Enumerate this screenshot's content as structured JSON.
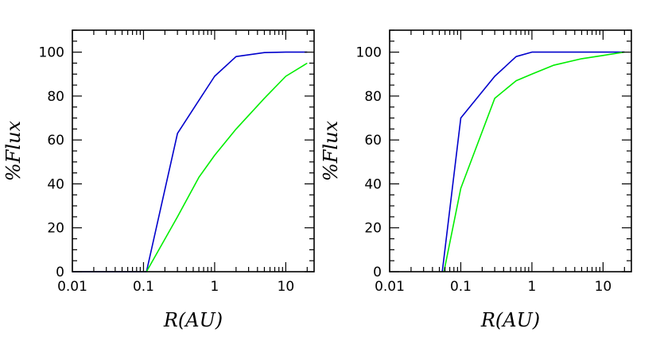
{
  "chart_data": [
    {
      "type": "line",
      "xlabel": "R(AU)",
      "ylabel": "%Flux",
      "xscale": "log",
      "xlim": [
        0.01,
        25
      ],
      "ylim": [
        0,
        110
      ],
      "xticks": [
        0.01,
        0.1,
        1,
        10
      ],
      "xtick_labels": [
        "0.01",
        "0.1",
        "1",
        "10"
      ],
      "yticks": [
        0,
        20,
        40,
        60,
        80,
        100
      ],
      "ytick_labels": [
        "0",
        "20",
        "40",
        "60",
        "80",
        "100"
      ],
      "series": [
        {
          "name": "blue",
          "color": "#0000cc",
          "x": [
            0.01,
            0.11,
            0.3,
            0.6,
            1,
            2,
            5,
            10,
            20
          ],
          "y": [
            0,
            0,
            63,
            78,
            89,
            98,
            99.8,
            100,
            100
          ]
        },
        {
          "name": "green",
          "color": "#00ee00",
          "x": [
            0.11,
            0.3,
            0.6,
            1,
            2,
            5,
            10,
            20
          ],
          "y": [
            0,
            25,
            43,
            53,
            65,
            79,
            89,
            95
          ]
        }
      ]
    },
    {
      "type": "line",
      "xlabel": "R(AU)",
      "ylabel": "%Flux",
      "xscale": "log",
      "xlim": [
        0.01,
        25
      ],
      "ylim": [
        0,
        110
      ],
      "xticks": [
        0.01,
        0.1,
        1,
        10
      ],
      "xtick_labels": [
        "0.01",
        "0.1",
        "1",
        "10"
      ],
      "yticks": [
        0,
        20,
        40,
        60,
        80,
        100
      ],
      "ytick_labels": [
        "0",
        "20",
        "40",
        "60",
        "80",
        "100"
      ],
      "series": [
        {
          "name": "blue",
          "color": "#0000cc",
          "x": [
            0.055,
            0.1,
            0.3,
            0.6,
            1,
            2,
            5,
            10,
            20
          ],
          "y": [
            0,
            70,
            89,
            98,
            100,
            100,
            100,
            100,
            100
          ]
        },
        {
          "name": "green",
          "color": "#00ee00",
          "x": [
            0.058,
            0.1,
            0.3,
            0.6,
            1,
            2,
            5,
            10,
            20
          ],
          "y": [
            0,
            38,
            79,
            87,
            90,
            94,
            97,
            98.5,
            100
          ]
        }
      ]
    }
  ]
}
